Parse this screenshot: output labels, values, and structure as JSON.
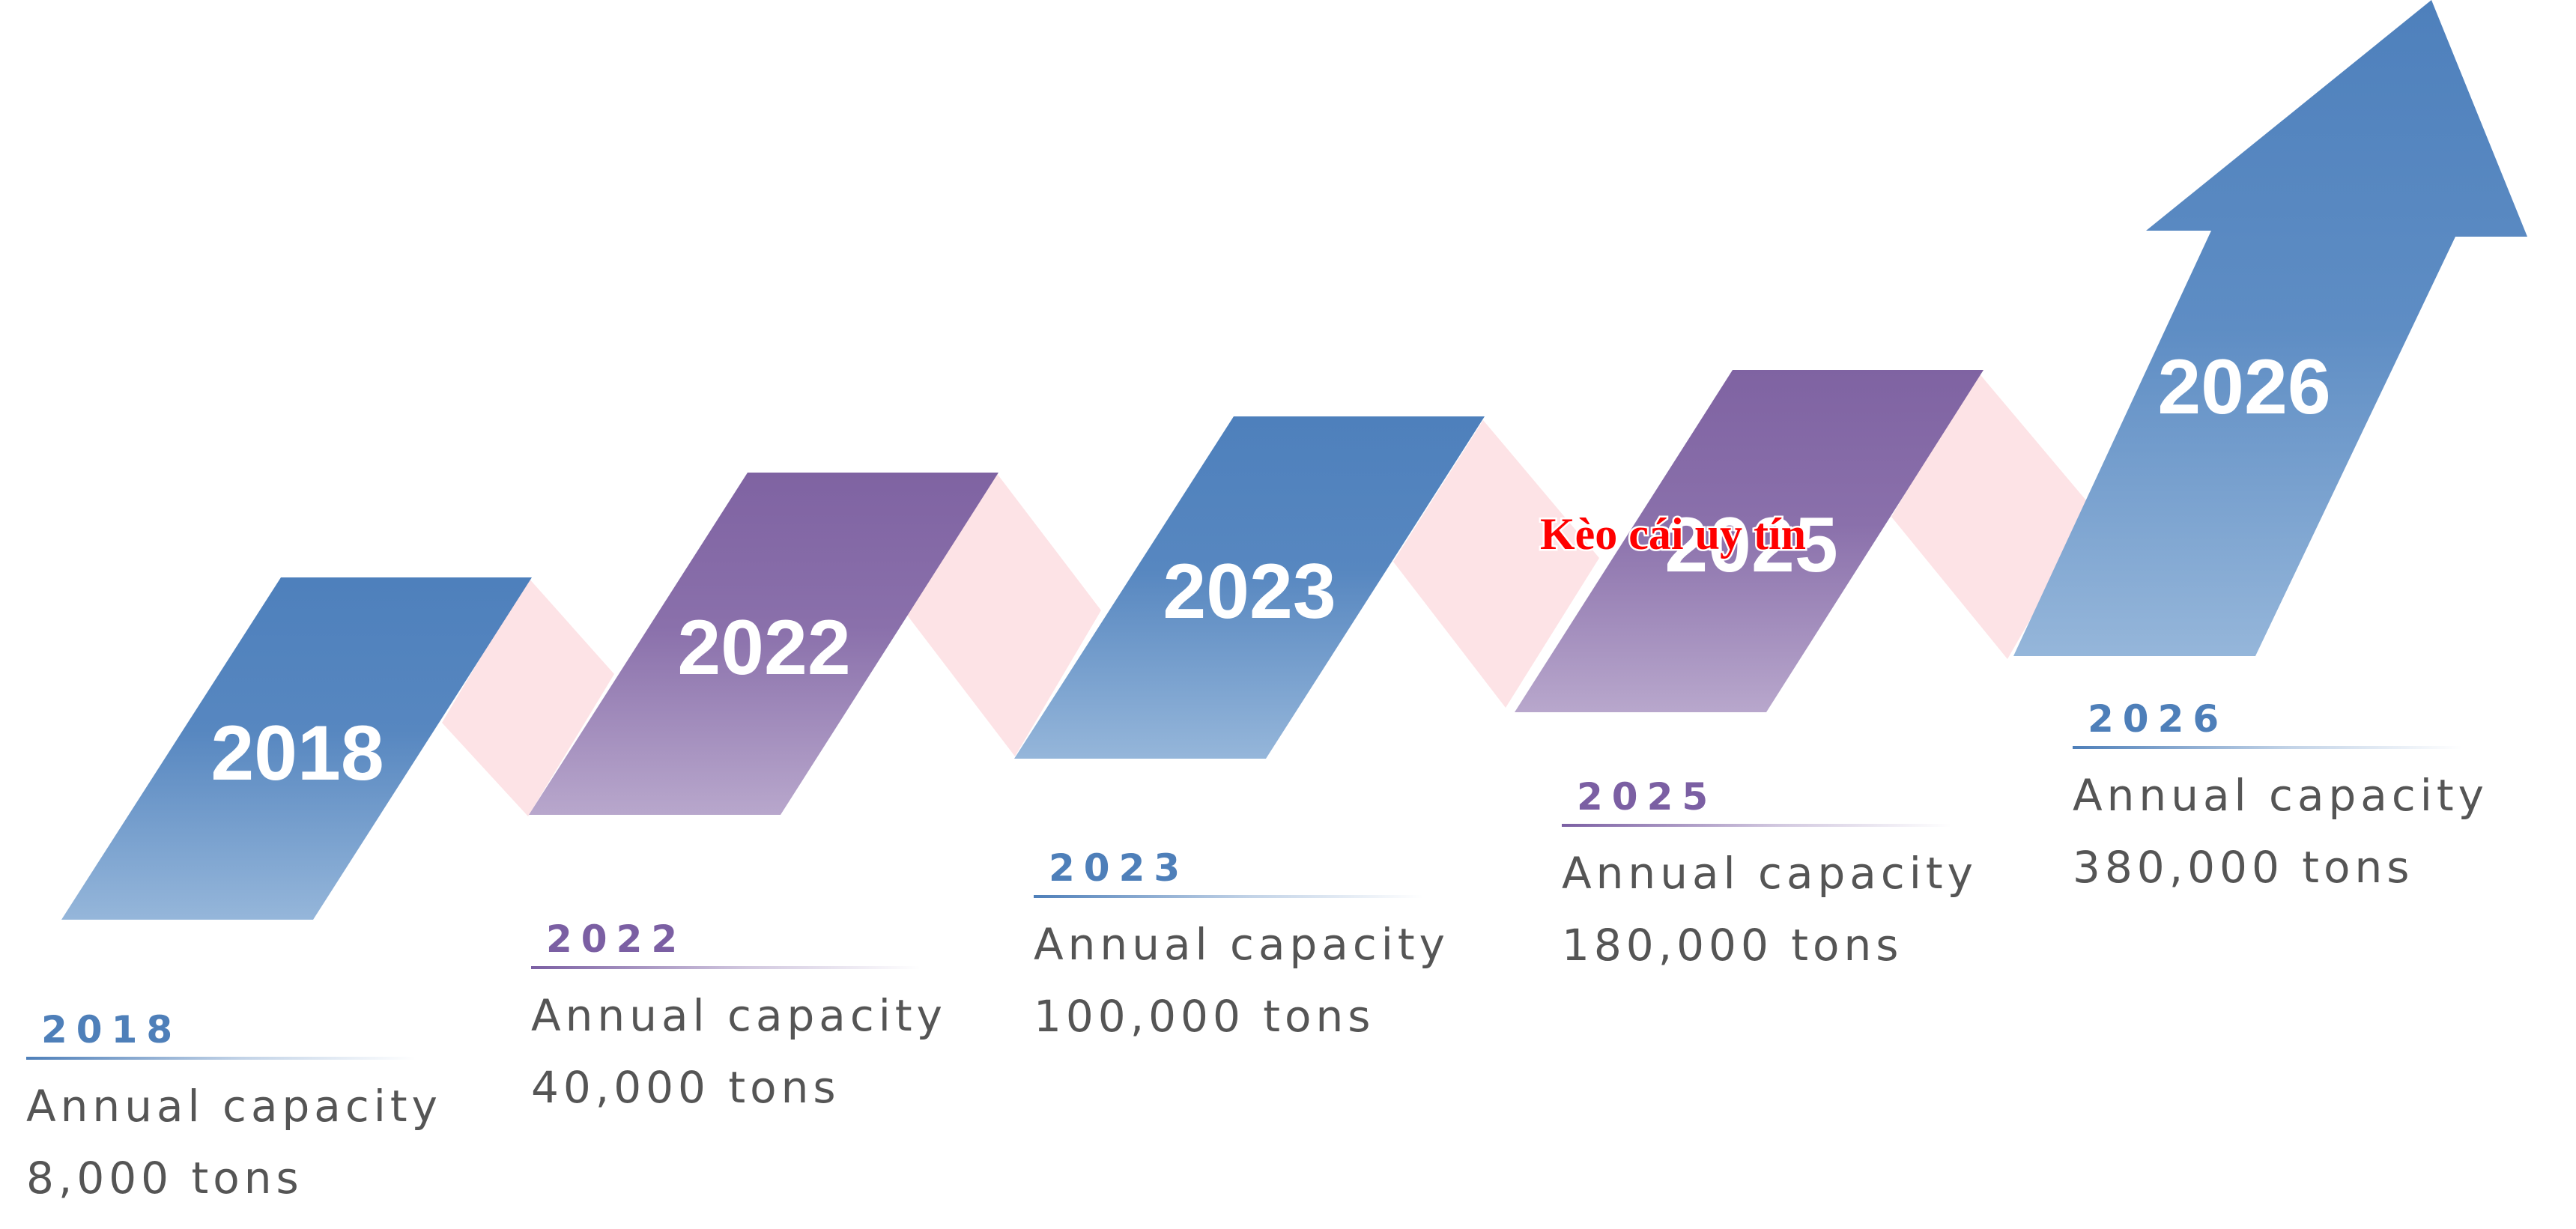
{
  "colors": {
    "blue": "#4e80bc",
    "blue_light": "#95b6da",
    "purple": "#7f63a2",
    "purple_light": "#b8a7cc",
    "ribbon": "#fde3e6",
    "text": "#555555"
  },
  "shapes": [
    {
      "year": "2018"
    },
    {
      "year": "2022"
    },
    {
      "year": "2023"
    },
    {
      "year": "2025"
    },
    {
      "year": "2026"
    }
  ],
  "watermark": "Kèo cái uy tín",
  "milestones": [
    {
      "year": "2018",
      "label": "Annual capacity",
      "value": "8,000 tons",
      "color": "blue"
    },
    {
      "year": "2022",
      "label": "Annual capacity",
      "value": "40,000 tons",
      "color": "purple"
    },
    {
      "year": "2023",
      "label": "Annual capacity",
      "value": "100,000 tons",
      "color": "blue"
    },
    {
      "year": "2025",
      "label": "Annual capacity",
      "value": "180,000 tons",
      "color": "purple"
    },
    {
      "year": "2026",
      "label": "Annual capacity",
      "value": "380,000 tons",
      "color": "blue"
    }
  ]
}
